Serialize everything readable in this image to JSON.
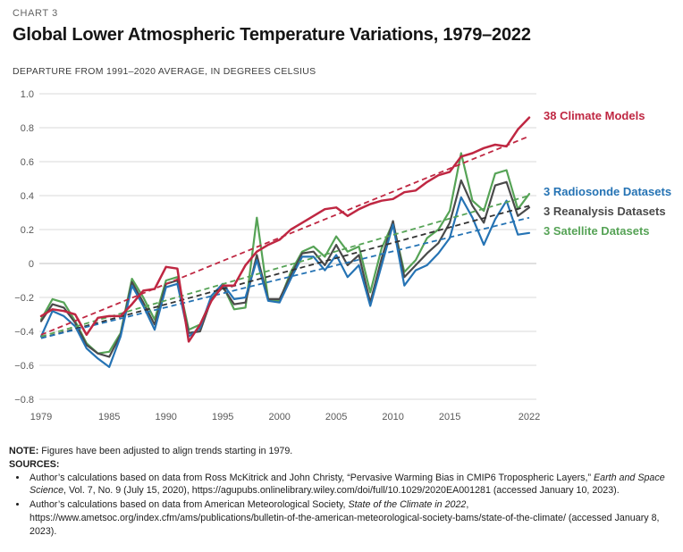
{
  "header": {
    "eyebrow": "CHART 3",
    "title": "Global Lower Atmospheric Temperature Variations, 1979–2022",
    "subtitle": "DEPARTURE FROM 1991–2020 AVERAGE, IN DEGREES CELSIUS"
  },
  "colors": {
    "grid": "#d9d9d9",
    "zero_line": "#bfbfbf",
    "axis_text": "#595959",
    "models_red": "#bf2742",
    "radiosonde_blue": "#2573b4",
    "reanalysis_gray": "#4a4a4a",
    "satellite_green": "#56a356",
    "reanalysis_trend_dark": "#333333"
  },
  "chart_data": {
    "type": "line",
    "title": "Global Lower Atmospheric Temperature Variations, 1979–2022",
    "ylabel": "Departure from 1991–2020 average, in degrees Celsius",
    "xlim": [
      1979,
      2022
    ],
    "ylim": [
      -0.8,
      1.0
    ],
    "grid": "horizontal",
    "x_ticks": [
      1979,
      1985,
      1990,
      1995,
      2000,
      2005,
      2010,
      2015,
      2022
    ],
    "y_ticks": [
      {
        "label": "1.0",
        "value": 1.0
      },
      {
        "label": "0.8",
        "value": 0.8
      },
      {
        "label": "0.6",
        "value": 0.6
      },
      {
        "label": "0.4",
        "value": 0.4
      },
      {
        "label": "0.2",
        "value": 0.2
      },
      {
        "label": "0",
        "value": 0.0
      },
      {
        "label": "−0.2",
        "value": -0.2
      },
      {
        "label": "−0.4",
        "value": -0.4
      },
      {
        "label": "−0.6",
        "value": -0.6
      },
      {
        "label": "−0.8",
        "value": -0.8
      }
    ],
    "years_start": 1979,
    "series": [
      {
        "name": "38 Climate Models",
        "color": "#bf2742",
        "width": 2.5,
        "values": [
          -0.31,
          -0.27,
          -0.28,
          -0.3,
          -0.42,
          -0.32,
          -0.31,
          -0.31,
          -0.24,
          -0.16,
          -0.15,
          -0.02,
          -0.03,
          -0.46,
          -0.36,
          -0.22,
          -0.13,
          -0.13,
          -0.01,
          0.07,
          0.11,
          0.14,
          0.2,
          0.24,
          0.28,
          0.32,
          0.33,
          0.28,
          0.32,
          0.35,
          0.37,
          0.38,
          0.42,
          0.43,
          0.48,
          0.52,
          0.54,
          0.63,
          0.65,
          0.68,
          0.7,
          0.69,
          0.79,
          0.86
        ]
      },
      {
        "name": "3 Radiosonde Datasets",
        "color": "#2573b4",
        "width": 2.2,
        "values": [
          -0.43,
          -0.28,
          -0.31,
          -0.37,
          -0.5,
          -0.56,
          -0.61,
          -0.43,
          -0.13,
          -0.25,
          -0.39,
          -0.14,
          -0.12,
          -0.43,
          -0.38,
          -0.19,
          -0.12,
          -0.21,
          -0.2,
          0.02,
          -0.22,
          -0.23,
          -0.09,
          0.04,
          0.04,
          -0.04,
          0.05,
          -0.08,
          -0.01,
          -0.25,
          -0.01,
          0.23,
          -0.13,
          -0.04,
          -0.01,
          0.06,
          0.15,
          0.39,
          0.27,
          0.11,
          0.26,
          0.37,
          0.17,
          0.18
        ]
      },
      {
        "name": "3 Reanalysis Datasets",
        "color": "#4a4a4a",
        "width": 2.2,
        "values": [
          -0.34,
          -0.24,
          -0.26,
          -0.35,
          -0.48,
          -0.53,
          -0.55,
          -0.42,
          -0.11,
          -0.23,
          -0.36,
          -0.12,
          -0.1,
          -0.41,
          -0.4,
          -0.21,
          -0.14,
          -0.24,
          -0.23,
          0.05,
          -0.21,
          -0.21,
          -0.07,
          0.06,
          0.07,
          -0.01,
          0.11,
          -0.01,
          0.05,
          -0.23,
          0.03,
          0.25,
          -0.08,
          -0.01,
          0.06,
          0.12,
          0.24,
          0.49,
          0.34,
          0.24,
          0.46,
          0.48,
          0.28,
          0.33
        ]
      },
      {
        "name": "3 Satellite Datasets",
        "color": "#56a356",
        "width": 2.2,
        "values": [
          -0.33,
          -0.21,
          -0.23,
          -0.34,
          -0.47,
          -0.53,
          -0.52,
          -0.41,
          -0.09,
          -0.2,
          -0.33,
          -0.1,
          -0.08,
          -0.39,
          -0.36,
          -0.21,
          -0.13,
          -0.27,
          -0.26,
          0.27,
          -0.21,
          -0.22,
          -0.05,
          0.07,
          0.1,
          0.04,
          0.16,
          0.07,
          0.1,
          -0.17,
          0.09,
          0.24,
          -0.05,
          0.02,
          0.15,
          0.2,
          0.31,
          0.65,
          0.37,
          0.31,
          0.53,
          0.55,
          0.32,
          0.41
        ]
      }
    ],
    "trend_lines": [
      {
        "series": "3 Satellite Datasets",
        "color": "#56a356",
        "start": -0.43,
        "end": 0.4
      },
      {
        "series": "3 Reanalysis Datasets",
        "color": "#333333",
        "start": -0.44,
        "end": 0.34
      },
      {
        "series": "3 Radiosonde Datasets",
        "color": "#2573b4",
        "start": -0.44,
        "end": 0.27
      },
      {
        "series": "38 Climate Models",
        "color": "#bf2742",
        "start": -0.42,
        "end": 0.75
      }
    ],
    "legend_position": "right-of-line-ends"
  },
  "footer": {
    "note_label": "NOTE:",
    "note_text": "Figures have been adjusted to align trends starting in 1979.",
    "sources_label": "SOURCES:",
    "source_1": {
      "prefix": "Author’s calculations based on data from Ross McKitrick and John Christy, “Pervasive Warming Bias in CMIP6 Tropospheric Layers,” ",
      "italic": "Earth and Space Science",
      "suffix": ", Vol. 7, No. 9 (July 15, 2020), https://agupubs.onlinelibrary.wiley.com/doi/full/10.1029/2020EA001281 (accessed January 10, 2023)."
    },
    "source_2": {
      "prefix": "Author’s calculations based on data from American Meteorological Society, ",
      "italic": "State of the Climate in 2022",
      "suffix": ", https://www.ametsoc.org/index.cfm/ams/publications/bulletin-of-the-american-meteorological-society-bams/state-of-the-climate/ (accessed January 8, 2023)."
    }
  }
}
